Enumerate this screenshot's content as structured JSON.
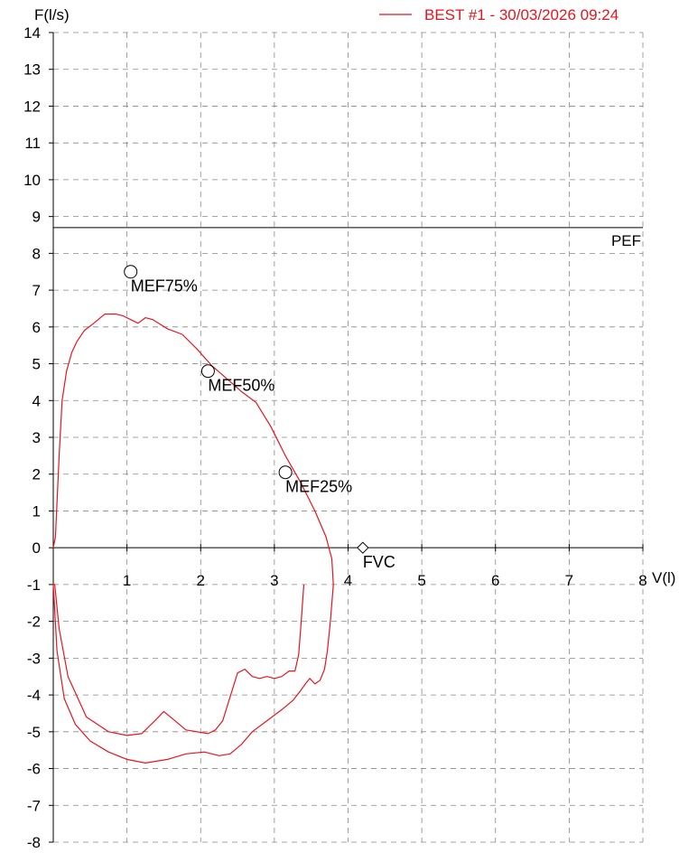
{
  "chart_data": {
    "type": "line",
    "title": "",
    "xlabel": "V(l)",
    "ylabel": "F(l/s)",
    "xlim": [
      0,
      8
    ],
    "ylim": [
      -8,
      14
    ],
    "grid": true,
    "legend": "top-right",
    "x_ticks": [
      "1",
      "2",
      "3",
      "4",
      "5",
      "6",
      "7",
      "8"
    ],
    "y_ticks": [
      "14",
      "13",
      "12",
      "11",
      "10",
      "9",
      "8",
      "7",
      "6",
      "5",
      "4",
      "3",
      "2",
      "1",
      "0",
      "-1",
      "-2",
      "-3",
      "-4",
      "-5",
      "-6",
      "-7",
      "-8"
    ],
    "series": [
      {
        "name": "BEST #1 - 30/03/2026  09:24",
        "color": "#e8141e",
        "x": [
          0.0,
          0.03,
          0.08,
          0.12,
          0.18,
          0.25,
          0.32,
          0.42,
          0.55,
          0.7,
          0.85,
          0.95,
          1.05,
          1.15,
          1.25,
          1.35,
          1.55,
          1.75,
          1.95,
          2.15,
          2.35,
          2.55,
          2.75,
          2.95,
          3.15,
          3.35,
          3.55,
          3.7,
          3.78,
          3.8,
          3.76,
          3.72,
          3.68,
          3.62,
          3.55,
          3.48,
          3.42,
          3.35,
          3.25,
          3.1,
          2.9,
          2.7,
          2.55,
          2.4,
          2.25,
          2.05,
          1.8,
          1.55,
          1.25,
          1.0,
          0.75,
          0.5,
          0.3,
          0.15,
          0.05,
          0.0,
          0.02,
          0.08,
          0.2,
          0.45,
          0.75,
          1.0,
          1.2,
          1.38,
          1.5,
          1.65,
          1.8,
          1.95,
          2.1,
          2.2,
          2.3,
          2.4,
          2.5,
          2.6,
          2.7,
          2.8,
          2.9,
          3.0,
          3.1,
          3.2,
          3.28,
          3.33,
          3.36,
          3.4
        ],
        "y": [
          0.0,
          0.3,
          2.5,
          4.0,
          4.8,
          5.3,
          5.6,
          5.9,
          6.1,
          6.35,
          6.35,
          6.3,
          6.2,
          6.1,
          6.25,
          6.2,
          5.95,
          5.8,
          5.4,
          4.95,
          4.6,
          4.25,
          3.95,
          3.3,
          2.5,
          1.8,
          1.0,
          0.3,
          -0.3,
          -1.0,
          -2.0,
          -2.8,
          -3.3,
          -3.6,
          -3.7,
          -3.55,
          -3.7,
          -3.9,
          -4.15,
          -4.4,
          -4.7,
          -5.0,
          -5.35,
          -5.6,
          -5.65,
          -5.55,
          -5.6,
          -5.75,
          -5.85,
          -5.75,
          -5.55,
          -5.25,
          -4.8,
          -4.1,
          -2.8,
          -1.0,
          -1.0,
          -2.2,
          -3.5,
          -4.6,
          -5.0,
          -5.1,
          -5.05,
          -4.7,
          -4.45,
          -4.7,
          -4.95,
          -5.0,
          -5.05,
          -4.95,
          -4.7,
          -4.05,
          -3.4,
          -3.3,
          -3.5,
          -3.55,
          -3.5,
          -3.55,
          -3.5,
          -3.35,
          -3.35,
          -2.9,
          -2.1,
          -1.0
        ]
      }
    ],
    "reference_lines": [
      {
        "label": "PEF",
        "y": 8.7
      }
    ],
    "markers": [
      {
        "label": "MEF75%",
        "x": 1.05,
        "y": 7.5,
        "shape": "circle"
      },
      {
        "label": "MEF50%",
        "x": 2.1,
        "y": 4.8,
        "shape": "circle"
      },
      {
        "label": "MEF25%",
        "x": 3.15,
        "y": 2.05,
        "shape": "circle"
      },
      {
        "label": "FVC",
        "x": 4.2,
        "y": 0.0,
        "shape": "diamond"
      }
    ]
  }
}
